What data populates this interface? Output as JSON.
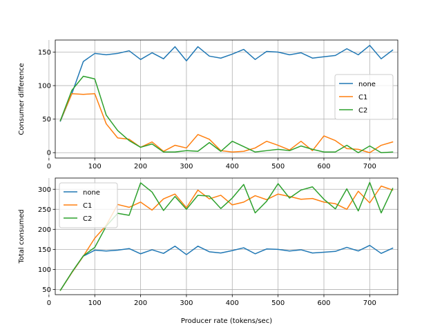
{
  "chart_data": [
    {
      "type": "line",
      "title": "",
      "xlabel": "",
      "ylabel": "Consumer difference",
      "xlim": [
        13.75,
        761.25
      ],
      "ylim": [
        -8,
        168
      ],
      "xticks": [
        0,
        100,
        200,
        300,
        400,
        500,
        600,
        700
      ],
      "yticks": [
        0,
        50,
        100,
        150
      ],
      "grid": true,
      "legend": "center-right",
      "x": [
        25,
        50,
        75,
        100,
        125,
        150,
        175,
        200,
        225,
        250,
        275,
        300,
        325,
        350,
        375,
        400,
        425,
        450,
        475,
        500,
        525,
        550,
        575,
        600,
        625,
        650,
        675,
        700,
        725,
        750
      ],
      "series": [
        {
          "name": "none",
          "color": "#1f77b4",
          "values": [
            47,
            88,
            136,
            148,
            146,
            148,
            152,
            139,
            149,
            140,
            158,
            137,
            158,
            144,
            141,
            147,
            154,
            139,
            151,
            150,
            146,
            149,
            141,
            143,
            145,
            155,
            146,
            160,
            140,
            153
          ]
        },
        {
          "name": "C1",
          "color": "#ff7f0e",
          "values": [
            48,
            88,
            87,
            88,
            43,
            22,
            20,
            8,
            16,
            2,
            11,
            7,
            27,
            20,
            3,
            1,
            2,
            7,
            17,
            11,
            4,
            17,
            3,
            25,
            18,
            6,
            5,
            0,
            11,
            16
          ]
        },
        {
          "name": "C2",
          "color": "#2ca02c",
          "values": [
            48,
            93,
            114,
            110,
            56,
            33,
            18,
            8,
            13,
            1,
            1,
            3,
            2,
            15,
            2,
            17,
            9,
            1,
            3,
            5,
            3,
            10,
            5,
            1,
            1,
            11,
            0,
            10,
            0,
            1
          ]
        }
      ]
    },
    {
      "type": "line",
      "title": "",
      "xlabel": "Producer rate (tokens/sec)",
      "ylabel": "Total consumed",
      "xlim": [
        13.75,
        761.25
      ],
      "ylim": [
        37,
        328
      ],
      "xticks": [
        0,
        100,
        200,
        300,
        400,
        500,
        600,
        700
      ],
      "yticks": [
        50,
        100,
        150,
        200,
        250,
        300
      ],
      "grid": true,
      "legend": "upper-left",
      "x": [
        25,
        50,
        75,
        100,
        125,
        150,
        175,
        200,
        225,
        250,
        275,
        300,
        325,
        350,
        375,
        400,
        425,
        450,
        475,
        500,
        525,
        550,
        575,
        600,
        625,
        650,
        675,
        700,
        725,
        750
      ],
      "series": [
        {
          "name": "none",
          "color": "#1f77b4",
          "values": [
            48,
            92,
            133,
            148,
            146,
            148,
            152,
            139,
            149,
            140,
            158,
            137,
            158,
            144,
            141,
            147,
            154,
            139,
            151,
            150,
            146,
            149,
            141,
            143,
            145,
            155,
            146,
            160,
            140,
            153
          ]
        },
        {
          "name": "C1",
          "color": "#ff7f0e",
          "values": [
            48,
            92,
            133,
            178,
            210,
            262,
            255,
            268,
            248,
            276,
            288,
            254,
            298,
            276,
            285,
            261,
            268,
            284,
            274,
            288,
            282,
            275,
            277,
            268,
            264,
            250,
            295,
            266,
            308,
            298
          ]
        },
        {
          "name": "C2",
          "color": "#2ca02c",
          "values": [
            48,
            93,
            134,
            155,
            208,
            240,
            235,
            316,
            293,
            247,
            282,
            250,
            285,
            283,
            252,
            278,
            312,
            241,
            270,
            314,
            278,
            298,
            306,
            275,
            251,
            301,
            246,
            317,
            241,
            302
          ]
        }
      ]
    }
  ]
}
